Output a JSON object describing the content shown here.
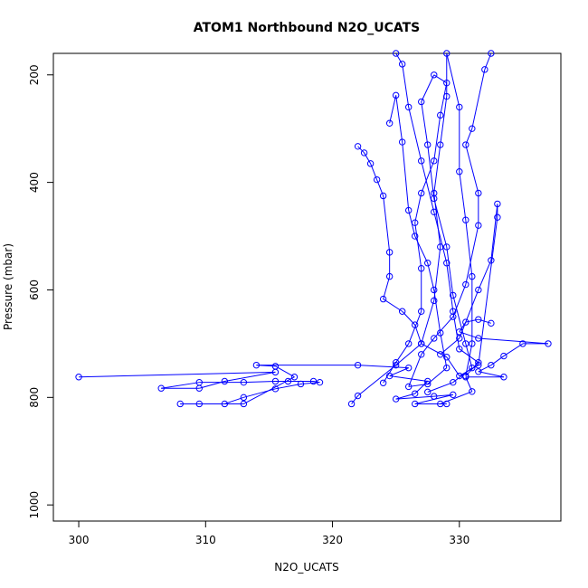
{
  "chart_data": {
    "type": "line",
    "title": "ATOM1 Northbound N2O_UCATS",
    "xlabel": "N2O_UCATS",
    "ylabel": "Pressure (mbar)",
    "xlim": [
      298,
      338
    ],
    "ylim": [
      1030,
      160
    ],
    "y_reversed": true,
    "x_ticks": [
      300,
      310,
      320,
      330
    ],
    "y_ticks": [
      200,
      400,
      600,
      800,
      1000
    ],
    "grid": false,
    "series_color": "#0000ff",
    "marker": "open-circle",
    "series": [
      {
        "points": [
          [
            300.0,
            762
          ],
          [
            315.5,
            753
          ],
          [
            311.5,
            770
          ],
          [
            309.5,
            783
          ],
          [
            306.5,
            783
          ],
          [
            309.5,
            772
          ],
          [
            313.0,
            772
          ],
          [
            315.5,
            770
          ],
          [
            316.5,
            770
          ],
          [
            318.5,
            770
          ],
          [
            319.0,
            772
          ],
          [
            317.5,
            775
          ],
          [
            315.5,
            784
          ],
          [
            313.0,
            800
          ],
          [
            311.5,
            812
          ],
          [
            309.5,
            812
          ],
          [
            308.0,
            812
          ],
          [
            313.0,
            812
          ],
          [
            317.0,
            762
          ],
          [
            315.5,
            742
          ],
          [
            314.0,
            740
          ],
          [
            322.0,
            740
          ],
          [
            326.0,
            745
          ],
          [
            324.5,
            760
          ],
          [
            327.5,
            770
          ],
          [
            326.5,
            793
          ],
          [
            325.0,
            803
          ],
          [
            328.0,
            798
          ],
          [
            329.5,
            795
          ],
          [
            326.5,
            812
          ],
          [
            329.0,
            812
          ],
          [
            328.5,
            812
          ],
          [
            331.0,
            789
          ],
          [
            330.5,
            762
          ],
          [
            333.5,
            762
          ],
          [
            331.5,
            752
          ],
          [
            332.5,
            740
          ],
          [
            333.5,
            723
          ],
          [
            335.0,
            700
          ],
          [
            337.0,
            700
          ],
          [
            331.5,
            690
          ],
          [
            330.0,
            678
          ],
          [
            330.5,
            660
          ],
          [
            331.5,
            655
          ],
          [
            332.5,
            662
          ]
        ]
      },
      {
        "points": [
          [
            321.5,
            812
          ],
          [
            322.0,
            797
          ],
          [
            325.0,
            740
          ],
          [
            327.0,
            700
          ],
          [
            328.0,
            620
          ],
          [
            328.5,
            520
          ],
          [
            328.0,
            420
          ],
          [
            328.5,
            330
          ],
          [
            329.0,
            240
          ],
          [
            329.0,
            160
          ],
          [
            330.0,
            260
          ],
          [
            330.0,
            380
          ],
          [
            330.5,
            470
          ],
          [
            331.0,
            575
          ],
          [
            331.0,
            700
          ],
          [
            330.5,
            760
          ],
          [
            331.5,
            735
          ],
          [
            330.0,
            710
          ],
          [
            329.5,
            640
          ],
          [
            329.0,
            550
          ],
          [
            328.0,
            455
          ],
          [
            327.0,
            360
          ],
          [
            326.0,
            260
          ],
          [
            325.5,
            180
          ],
          [
            325.0,
            160
          ]
        ]
      },
      {
        "points": [
          [
            322.0,
            333
          ],
          [
            322.5,
            345
          ],
          [
            323.0,
            365
          ],
          [
            323.5,
            395
          ],
          [
            324.0,
            425
          ],
          [
            324.5,
            530
          ],
          [
            324.5,
            575
          ],
          [
            324.0,
            617
          ],
          [
            325.5,
            640
          ],
          [
            326.5,
            665
          ],
          [
            327.0,
            700
          ],
          [
            329.0,
            725
          ],
          [
            330.0,
            760
          ],
          [
            331.5,
            740
          ],
          [
            333.0,
            465
          ],
          [
            333.0,
            440
          ],
          [
            332.5,
            545
          ],
          [
            331.5,
            600
          ],
          [
            330.0,
            690
          ],
          [
            328.5,
            720
          ]
        ]
      },
      {
        "points": [
          [
            324.5,
            290
          ],
          [
            325.0,
            238
          ],
          [
            325.5,
            325
          ],
          [
            326.0,
            452
          ],
          [
            326.5,
            500
          ],
          [
            327.5,
            550
          ],
          [
            328.0,
            600
          ],
          [
            328.5,
            680
          ],
          [
            329.0,
            745
          ],
          [
            327.5,
            775
          ],
          [
            326.0,
            780
          ],
          [
            327.0,
            720
          ],
          [
            328.0,
            690
          ],
          [
            329.5,
            650
          ],
          [
            330.5,
            590
          ],
          [
            331.5,
            480
          ],
          [
            331.5,
            420
          ],
          [
            330.5,
            330
          ],
          [
            331.0,
            300
          ],
          [
            332.0,
            190
          ],
          [
            332.5,
            160
          ]
        ]
      },
      {
        "points": [
          [
            324.0,
            773
          ],
          [
            325.0,
            735
          ],
          [
            326.0,
            700
          ],
          [
            327.0,
            640
          ],
          [
            327.0,
            560
          ],
          [
            326.5,
            475
          ],
          [
            327.0,
            420
          ],
          [
            328.0,
            360
          ],
          [
            328.5,
            275
          ],
          [
            329.0,
            215
          ],
          [
            328.0,
            200
          ],
          [
            327.0,
            250
          ],
          [
            327.5,
            330
          ],
          [
            328.0,
            430
          ],
          [
            329.0,
            520
          ],
          [
            329.5,
            610
          ],
          [
            330.5,
            700
          ],
          [
            331.0,
            745
          ],
          [
            329.5,
            772
          ],
          [
            327.5,
            790
          ]
        ]
      }
    ]
  }
}
